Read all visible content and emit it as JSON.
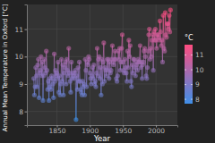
{
  "chart_data": {
    "type": "line",
    "marker": "circle",
    "x_label": "Year",
    "y_label": "Annual Mean Temperature in Oxford [°C]",
    "x": [
      1815,
      1816,
      1817,
      1818,
      1819,
      1820,
      1821,
      1822,
      1823,
      1824,
      1825,
      1826,
      1827,
      1828,
      1829,
      1830,
      1831,
      1832,
      1833,
      1834,
      1835,
      1836,
      1837,
      1838,
      1839,
      1840,
      1841,
      1842,
      1843,
      1844,
      1845,
      1846,
      1847,
      1848,
      1849,
      1850,
      1851,
      1852,
      1853,
      1854,
      1855,
      1856,
      1857,
      1858,
      1859,
      1860,
      1861,
      1862,
      1863,
      1864,
      1865,
      1866,
      1867,
      1868,
      1869,
      1870,
      1871,
      1872,
      1873,
      1874,
      1875,
      1876,
      1877,
      1878,
      1879,
      1880,
      1881,
      1882,
      1883,
      1884,
      1885,
      1886,
      1887,
      1888,
      1889,
      1890,
      1891,
      1892,
      1893,
      1894,
      1895,
      1896,
      1897,
      1898,
      1899,
      1900,
      1901,
      1902,
      1903,
      1904,
      1905,
      1906,
      1907,
      1908,
      1909,
      1910,
      1911,
      1912,
      1913,
      1914,
      1915,
      1916,
      1917,
      1918,
      1919,
      1920,
      1921,
      1922,
      1923,
      1924,
      1925,
      1926,
      1927,
      1928,
      1929,
      1930,
      1931,
      1932,
      1933,
      1934,
      1935,
      1936,
      1937,
      1938,
      1939,
      1940,
      1941,
      1942,
      1943,
      1944,
      1945,
      1946,
      1947,
      1948,
      1949,
      1950,
      1951,
      1952,
      1953,
      1954,
      1955,
      1956,
      1957,
      1958,
      1959,
      1960,
      1961,
      1962,
      1963,
      1964,
      1965,
      1966,
      1967,
      1968,
      1969,
      1970,
      1971,
      1972,
      1973,
      1974,
      1975,
      1976,
      1977,
      1978,
      1979,
      1980,
      1981,
      1982,
      1983,
      1984,
      1985,
      1986,
      1987,
      1988,
      1989,
      1990,
      1991,
      1992,
      1993,
      1994,
      1995,
      1996,
      1997,
      1998,
      1999,
      2000,
      2001,
      2002,
      2003,
      2004,
      2005,
      2006,
      2007,
      2008,
      2009,
      2010,
      2011,
      2012,
      2013,
      2014,
      2015,
      2016,
      2017,
      2018,
      2019,
      2020,
      2021,
      2022
    ],
    "values": [
      9.2,
      8.6,
      8.9,
      9.6,
      9.3,
      8.9,
      9.7,
      9.9,
      8.5,
      9.4,
      9.5,
      10.0,
      9.3,
      9.8,
      8.4,
      9.3,
      9.9,
      9.6,
      9.4,
      10.2,
      9.5,
      8.8,
      9.1,
      8.4,
      9.2,
      8.9,
      8.8,
      9.3,
      9.2,
      9.0,
      8.5,
      10.1,
      9.1,
      9.5,
      9.3,
      9.4,
      9.2,
      9.8,
      8.7,
      9.3,
      8.6,
      9.0,
      9.9,
      9.1,
      9.7,
      8.6,
      9.4,
      9.6,
      9.8,
      9.0,
      9.9,
      9.5,
      9.3,
      10.3,
      9.4,
      9.1,
      8.7,
      9.8,
      9.2,
      9.4,
      9.3,
      9.2,
      9.4,
      9.5,
      7.7,
      9.3,
      8.8,
      9.6,
      9.1,
      9.8,
      9.1,
      8.8,
      8.7,
      8.6,
      9.1,
      8.9,
      9.0,
      8.6,
      9.9,
      9.5,
      8.9,
      9.8,
      9.7,
      10.0,
      9.9,
      9.4,
      9.2,
      9.0,
      9.3,
      9.6,
      9.2,
      9.7,
      9.0,
      9.1,
      8.9,
      9.4,
      10.3,
      9.3,
      9.9,
      10.0,
      9.2,
      9.6,
      8.6,
      9.9,
      9.0,
      9.8,
      10.5,
      9.1,
      9.6,
      9.5,
      9.3,
      9.9,
      9.5,
      9.9,
      9.2,
      9.8,
      9.4,
      9.5,
      9.9,
      10.4,
      9.8,
      9.7,
      9.9,
      10.2,
      9.9,
      9.2,
      9.1,
      9.3,
      10.2,
      9.9,
      10.3,
      9.5,
      9.8,
      10.3,
      10.8,
      9.8,
      9.5,
      9.4,
      9.9,
      9.6,
      9.4,
      9.1,
      10.2,
      9.6,
      10.6,
      10.0,
      10.4,
      9.1,
      8.9,
      9.7,
      9.4,
      9.9,
      9.9,
      9.6,
      9.3,
      9.8,
      9.7,
      9.5,
      9.9,
      9.8,
      9.8,
      10.4,
      9.6,
      9.8,
      9.2,
      9.7,
      9.8,
      10.2,
      10.3,
      10.0,
      9.3,
      9.2,
      9.6,
      10.2,
      10.8,
      11.0,
      9.9,
      10.3,
      10.0,
      10.6,
      10.8,
      9.5,
      10.9,
      10.6,
      11.0,
      10.6,
      10.3,
      10.8,
      10.8,
      10.7,
      10.6,
      11.3,
      10.9,
      10.4,
      10.6,
      9.8,
      11.5,
      10.3,
      10.2,
      11.6,
      10.8,
      10.7,
      11.2,
      11.2,
      11.0,
      11.5,
      10.9,
      11.7
    ],
    "xlim": [
      1804.6,
      2032.4
    ],
    "xticks": [
      1850,
      1900,
      1950,
      2000
    ],
    "ylim": [
      7.5,
      11.9
    ],
    "yticks": [
      8,
      9,
      10,
      11
    ],
    "grid": true,
    "colorbar": {
      "title": "°C",
      "range": [
        7.7,
        11.7
      ],
      "ticks": [
        8,
        9,
        10,
        11
      ]
    }
  }
}
